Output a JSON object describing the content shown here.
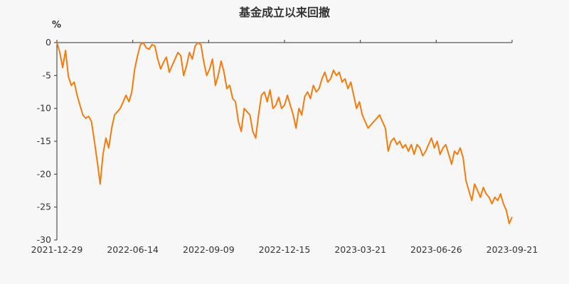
{
  "chart_data": {
    "type": "line",
    "title": "基金成立以来回撤",
    "ylabel": "%",
    "xlabel": "",
    "ylim": [
      -30,
      0
    ],
    "yticks": [
      0,
      -5,
      -10,
      -15,
      -20,
      -25,
      -30
    ],
    "x_tick_labels": [
      "2021-12-29",
      "2022-06-14",
      "2022-09-09",
      "2022-12-15",
      "2023-03-21",
      "2023-06-26",
      "2023-09-21"
    ],
    "grid": false,
    "legend": "none",
    "color": "#f57c0c",
    "series": [
      {
        "values": [
          0,
          -1.5,
          -3.8,
          -1.2,
          -5.2,
          -6.5,
          -6,
          -8,
          -9.5,
          -11,
          -11.5,
          -11.2,
          -12,
          -15,
          -18,
          -21.5,
          -17,
          -14.5,
          -16,
          -13,
          -11,
          -10.5,
          -10,
          -9,
          -8,
          -9,
          -7.5,
          -4,
          -2,
          -0.3,
          0,
          -0.8,
          -1,
          -0.3,
          -0.5,
          -2.5,
          -4,
          -3,
          -2.2,
          -4.5,
          -3.5,
          -2.5,
          -1.5,
          -2,
          -5,
          -3.5,
          -1.5,
          -2.5,
          -0.5,
          0,
          -0.3,
          -3,
          -5,
          -4,
          -2.5,
          -6.5,
          -5,
          -2.8,
          -4.5,
          -7,
          -6.5,
          -8.5,
          -9,
          -12,
          -13.5,
          -10,
          -10.5,
          -11,
          -13.5,
          -14.5,
          -11,
          -8,
          -7.5,
          -9,
          -7.2,
          -10,
          -9.5,
          -8.3,
          -10,
          -9.5,
          -8,
          -9.5,
          -11,
          -13,
          -10,
          -11,
          -8.2,
          -7.5,
          -8.5,
          -6.5,
          -7.5,
          -7,
          -5.5,
          -4.5,
          -6,
          -5.5,
          -4.2,
          -5,
          -4.5,
          -6,
          -5.5,
          -7,
          -6,
          -8,
          -10,
          -9,
          -11,
          -12,
          -13,
          -12.5,
          -12,
          -11.5,
          -11,
          -12,
          -13,
          -16.5,
          -15,
          -14.5,
          -15.5,
          -15,
          -16,
          -15.5,
          -16.5,
          -15.5,
          -17,
          -15.5,
          -16,
          -17.2,
          -16.5,
          -15.5,
          -14.5,
          -16,
          -15,
          -17,
          -16,
          -15.5,
          -17,
          -18.5,
          -16.5,
          -17,
          -16,
          -17.5,
          -21,
          -22.5,
          -24,
          -21.5,
          -22.5,
          -23.5,
          -22,
          -23,
          -23.5,
          -24.5,
          -23.5,
          -24,
          -23,
          -24.5,
          -25.5,
          -27.5,
          -26.5
        ]
      }
    ]
  }
}
